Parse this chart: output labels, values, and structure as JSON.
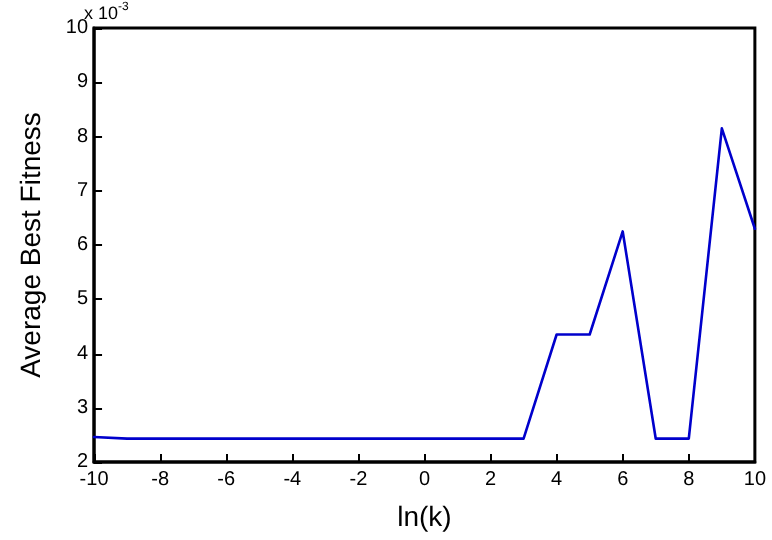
{
  "chart_data": {
    "type": "line",
    "xlabel": "ln(k)",
    "ylabel": "Average Best Fitness",
    "annotations": [
      "x 10$^{-3}$"
    ],
    "x": [
      -10,
      -9,
      -8,
      -7,
      -6,
      -5,
      -4,
      -3,
      -2,
      -1,
      0,
      1,
      2,
      3,
      4,
      5,
      6,
      7,
      8,
      9,
      10
    ],
    "series": [
      {
        "color": "#0000cc",
        "values": [
          2.46,
          2.43,
          2.43,
          2.43,
          2.43,
          2.43,
          2.43,
          2.43,
          2.43,
          2.43,
          2.43,
          2.43,
          2.43,
          2.43,
          4.35,
          4.35,
          6.25,
          2.43,
          2.43,
          8.15,
          6.3
        ]
      }
    ],
    "xlim": [
      -10,
      10
    ],
    "xticks": [
      -10,
      -8,
      -6,
      -4,
      -2,
      0,
      2,
      4,
      6,
      8,
      10
    ],
    "ylim": [
      2,
      10
    ],
    "yticks": [
      2,
      3,
      4,
      5,
      6,
      7,
      8,
      9,
      10
    ],
    "grid": false,
    "marker": "none",
    "line_style": "solid"
  }
}
